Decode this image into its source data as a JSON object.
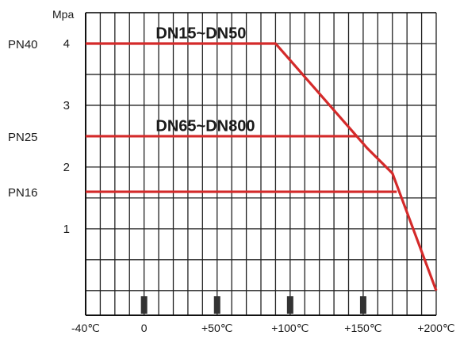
{
  "chart_data": {
    "type": "line",
    "ylabel": "Mpa",
    "x_ticks": [
      "-40℃",
      "0",
      "+50℃",
      "+100℃",
      "+150℃",
      "+200℃"
    ],
    "x_tick_values": [
      -40,
      0,
      50,
      100,
      150,
      200
    ],
    "y_ticks": [
      "1",
      "2",
      "3",
      "4"
    ],
    "y_tick_values": [
      1,
      2,
      3,
      4
    ],
    "pressure_labels": [
      {
        "text": "PN40",
        "value": 4
      },
      {
        "text": "PN25",
        "value": 2.5
      },
      {
        "text": "PN16",
        "value": 1.6
      }
    ],
    "xlim": [
      -40,
      200
    ],
    "ylim": [
      -0.4,
      4.5
    ],
    "grid": true,
    "grid_x_step": 10,
    "grid_y_step": 0.5,
    "line_color": "#d42a2a",
    "marker_color": "#333333",
    "markers_x": [
      0,
      50,
      100,
      150
    ],
    "series": [
      {
        "name": "DN15~DN50",
        "label_anchor": [
          8,
          4.08
        ],
        "points": [
          [
            -40,
            4
          ],
          [
            90,
            4
          ],
          [
            153,
            2.3
          ],
          [
            170,
            1.9
          ],
          [
            200,
            0
          ]
        ]
      },
      {
        "name": "DN65~DN800",
        "label_anchor": [
          8,
          2.58
        ],
        "points": [
          [
            -40,
            2.5
          ],
          [
            146,
            2.5
          ]
        ]
      },
      {
        "name": "",
        "points": [
          [
            -40,
            1.6
          ],
          [
            173,
            1.6
          ]
        ]
      }
    ]
  }
}
